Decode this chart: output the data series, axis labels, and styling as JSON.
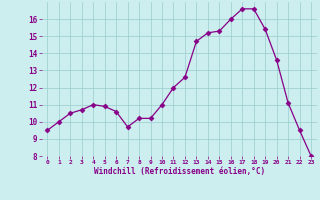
{
  "hours": [
    0,
    1,
    2,
    3,
    4,
    5,
    6,
    7,
    8,
    9,
    10,
    11,
    12,
    13,
    14,
    15,
    16,
    17,
    18,
    19,
    20,
    21,
    22,
    23
  ],
  "values": [
    9.5,
    10.0,
    10.5,
    10.7,
    11.0,
    10.9,
    10.6,
    9.7,
    10.2,
    10.2,
    11.0,
    12.0,
    12.6,
    14.7,
    15.2,
    15.3,
    16.0,
    16.6,
    16.6,
    15.4,
    13.6,
    11.1,
    9.5,
    8.0
  ],
  "line_color": "#880088",
  "marker": "D",
  "marker_size": 2.5,
  "bg_color": "#cceeee",
  "grid_color": "#99cccc",
  "xlabel": "Windchill (Refroidissement éolien,°C)",
  "xlabel_color": "#880088",
  "tick_color": "#880088",
  "ylim": [
    8,
    17
  ],
  "xlim": [
    -0.5,
    23.5
  ],
  "yticks": [
    8,
    9,
    10,
    11,
    12,
    13,
    14,
    15,
    16
  ],
  "xticks": [
    0,
    1,
    2,
    3,
    4,
    5,
    6,
    7,
    8,
    9,
    10,
    11,
    12,
    13,
    14,
    15,
    16,
    17,
    18,
    19,
    20,
    21,
    22,
    23
  ],
  "xtick_labels": [
    "0",
    "1",
    "2",
    "3",
    "4",
    "5",
    "6",
    "7",
    "8",
    "9",
    "10",
    "11",
    "12",
    "13",
    "14",
    "15",
    "16",
    "17",
    "18",
    "19",
    "20",
    "21",
    "22",
    "23"
  ],
  "title": ""
}
